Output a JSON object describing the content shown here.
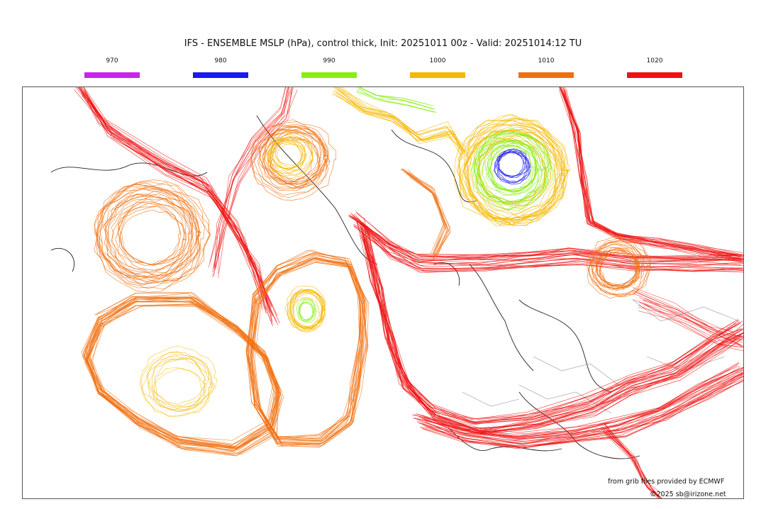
{
  "title": "IFS - ENSEMBLE MSLP (hPa), control thick, Init: 20251011 00z - Valid: 20251014:12 TU",
  "legend": [
    {
      "label": "970",
      "color": "#cc22ee"
    },
    {
      "label": "980",
      "color": "#1a1aee"
    },
    {
      "label": "990",
      "color": "#88ee11"
    },
    {
      "label": "1000",
      "color": "#f5b800"
    },
    {
      "label": "1010",
      "color": "#f07010"
    },
    {
      "label": "1020",
      "color": "#ee1111"
    }
  ],
  "credits": {
    "source": "from grib files provided by ECMWF",
    "copyright": "©2025 sb@irizone.net"
  }
}
